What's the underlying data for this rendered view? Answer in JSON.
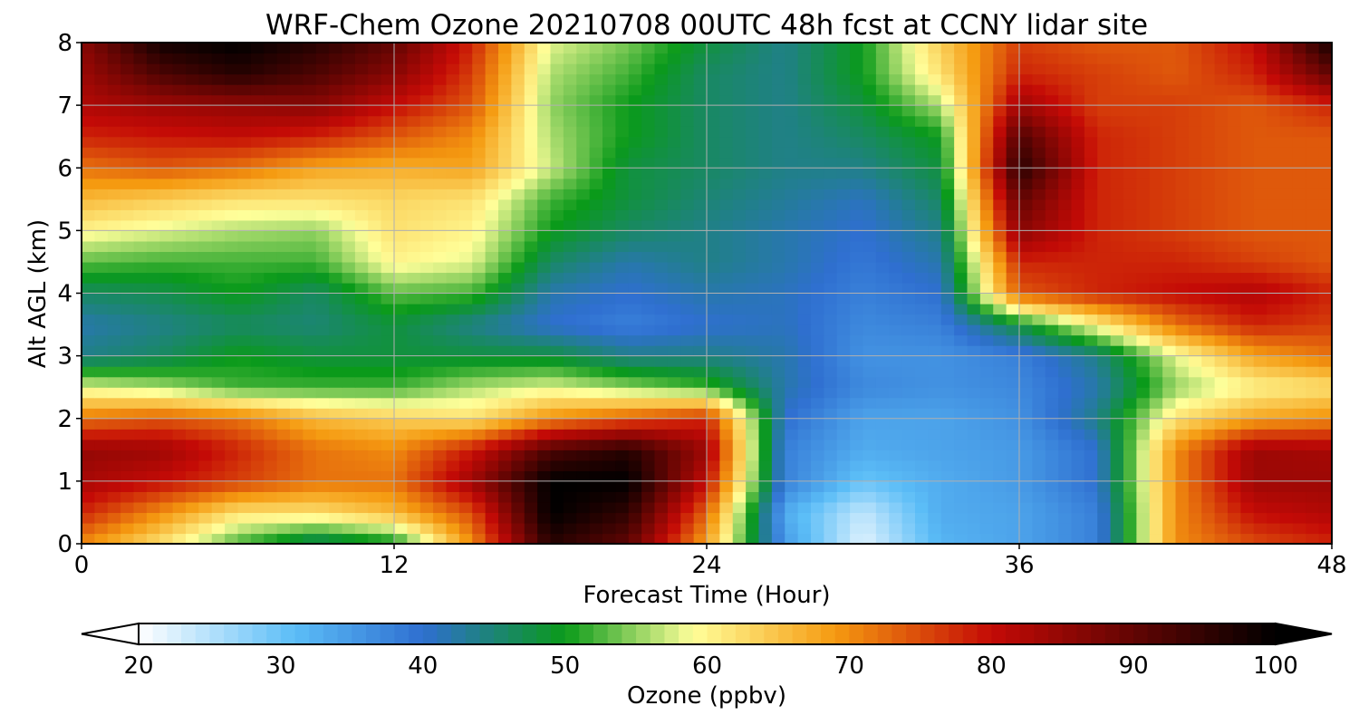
{
  "chart_data": {
    "type": "heatmap",
    "title": "WRF-Chem Ozone  20210708 00UTC 48h fcst at CCNY lidar site",
    "xlabel": "Forecast Time (Hour)",
    "ylabel": "Alt AGL (km)",
    "xlim": [
      0,
      48
    ],
    "ylim": [
      0,
      8
    ],
    "x_ticks": [
      0,
      12,
      24,
      36,
      48
    ],
    "y_ticks": [
      0,
      1,
      2,
      3,
      4,
      5,
      6,
      7,
      8
    ],
    "grid": true,
    "x_hours": [
      0,
      3,
      6,
      9,
      12,
      15,
      18,
      21,
      24,
      27,
      30,
      33,
      36,
      39,
      42,
      45,
      48
    ],
    "z_km": [
      0,
      0.5,
      1,
      1.5,
      2,
      2.5,
      3,
      3.5,
      4,
      4.5,
      5,
      5.5,
      6,
      6.5,
      7,
      7.5,
      8
    ],
    "ozone_ppbv_by_altitude": [
      [
        70,
        62,
        52,
        45,
        49,
        70,
        96,
        90,
        68,
        35,
        22,
        32,
        34,
        38,
        70,
        75,
        78
      ],
      [
        78,
        70,
        62,
        62,
        66,
        75,
        100,
        95,
        73,
        33,
        24,
        33,
        34,
        38,
        70,
        80,
        82
      ],
      [
        83,
        80,
        76,
        72,
        72,
        84,
        100,
        100,
        80,
        38,
        30,
        33,
        35,
        40,
        70,
        84,
        84
      ],
      [
        85,
        84,
        78,
        72,
        70,
        79,
        92,
        96,
        84,
        38,
        33,
        34,
        35,
        40,
        70,
        84,
        83
      ],
      [
        72,
        74,
        72,
        66,
        64,
        62,
        70,
        74,
        78,
        40,
        34,
        34,
        36,
        44,
        62,
        68,
        70
      ],
      [
        58,
        56,
        52,
        52,
        52,
        56,
        58,
        55,
        52,
        42,
        37,
        36,
        37,
        42,
        55,
        60,
        62
      ],
      [
        44,
        46,
        50,
        48,
        48,
        48,
        48,
        44,
        44,
        42,
        36,
        36,
        38,
        44,
        58,
        68,
        72
      ],
      [
        42,
        44,
        46,
        45,
        48,
        44,
        40,
        38,
        40,
        41,
        37,
        38,
        48,
        60,
        72,
        78,
        76
      ],
      [
        46,
        47,
        50,
        46,
        53,
        52,
        42,
        40,
        42,
        41,
        38,
        40,
        74,
        78,
        80,
        82,
        78
      ],
      [
        53,
        52,
        52,
        52,
        60,
        58,
        46,
        42,
        44,
        42,
        39,
        42,
        78,
        78,
        78,
        76,
        74
      ],
      [
        60,
        58,
        56,
        55,
        62,
        60,
        50,
        46,
        44,
        42,
        40,
        44,
        86,
        78,
        76,
        74,
        74
      ],
      [
        66,
        64,
        62,
        62,
        63,
        62,
        52,
        48,
        45,
        43,
        41,
        46,
        90,
        78,
        76,
        74,
        74
      ],
      [
        72,
        74,
        72,
        68,
        67,
        68,
        57,
        48,
        46,
        44,
        44,
        48,
        96,
        78,
        76,
        74,
        74
      ],
      [
        78,
        79,
        80,
        78,
        74,
        70,
        56,
        50,
        46,
        44,
        46,
        50,
        92,
        78,
        76,
        74,
        74
      ],
      [
        82,
        84,
        85,
        86,
        80,
        74,
        55,
        50,
        46,
        44,
        48,
        56,
        84,
        76,
        76,
        74,
        78
      ],
      [
        84,
        92,
        96,
        92,
        86,
        76,
        56,
        52,
        46,
        44,
        50,
        62,
        78,
        76,
        74,
        78,
        90
      ],
      [
        86,
        98,
        100,
        96,
        90,
        78,
        58,
        54,
        48,
        44,
        50,
        64,
        76,
        74,
        74,
        80,
        98
      ]
    ],
    "colorbar": {
      "label": "Ozone  (ppbv)",
      "ticks": [
        20,
        30,
        40,
        50,
        60,
        70,
        80,
        90,
        100
      ],
      "min": 20,
      "max": 100,
      "extend": "both",
      "colors": [
        "#ffffff",
        "#5bbdf7",
        "#2f6fd0",
        "#0a9a1a",
        "#ffff9a",
        "#f59a10",
        "#c40a06",
        "#000000"
      ],
      "color_stops": [
        20,
        31,
        40,
        50,
        59,
        69,
        80,
        100
      ]
    }
  }
}
